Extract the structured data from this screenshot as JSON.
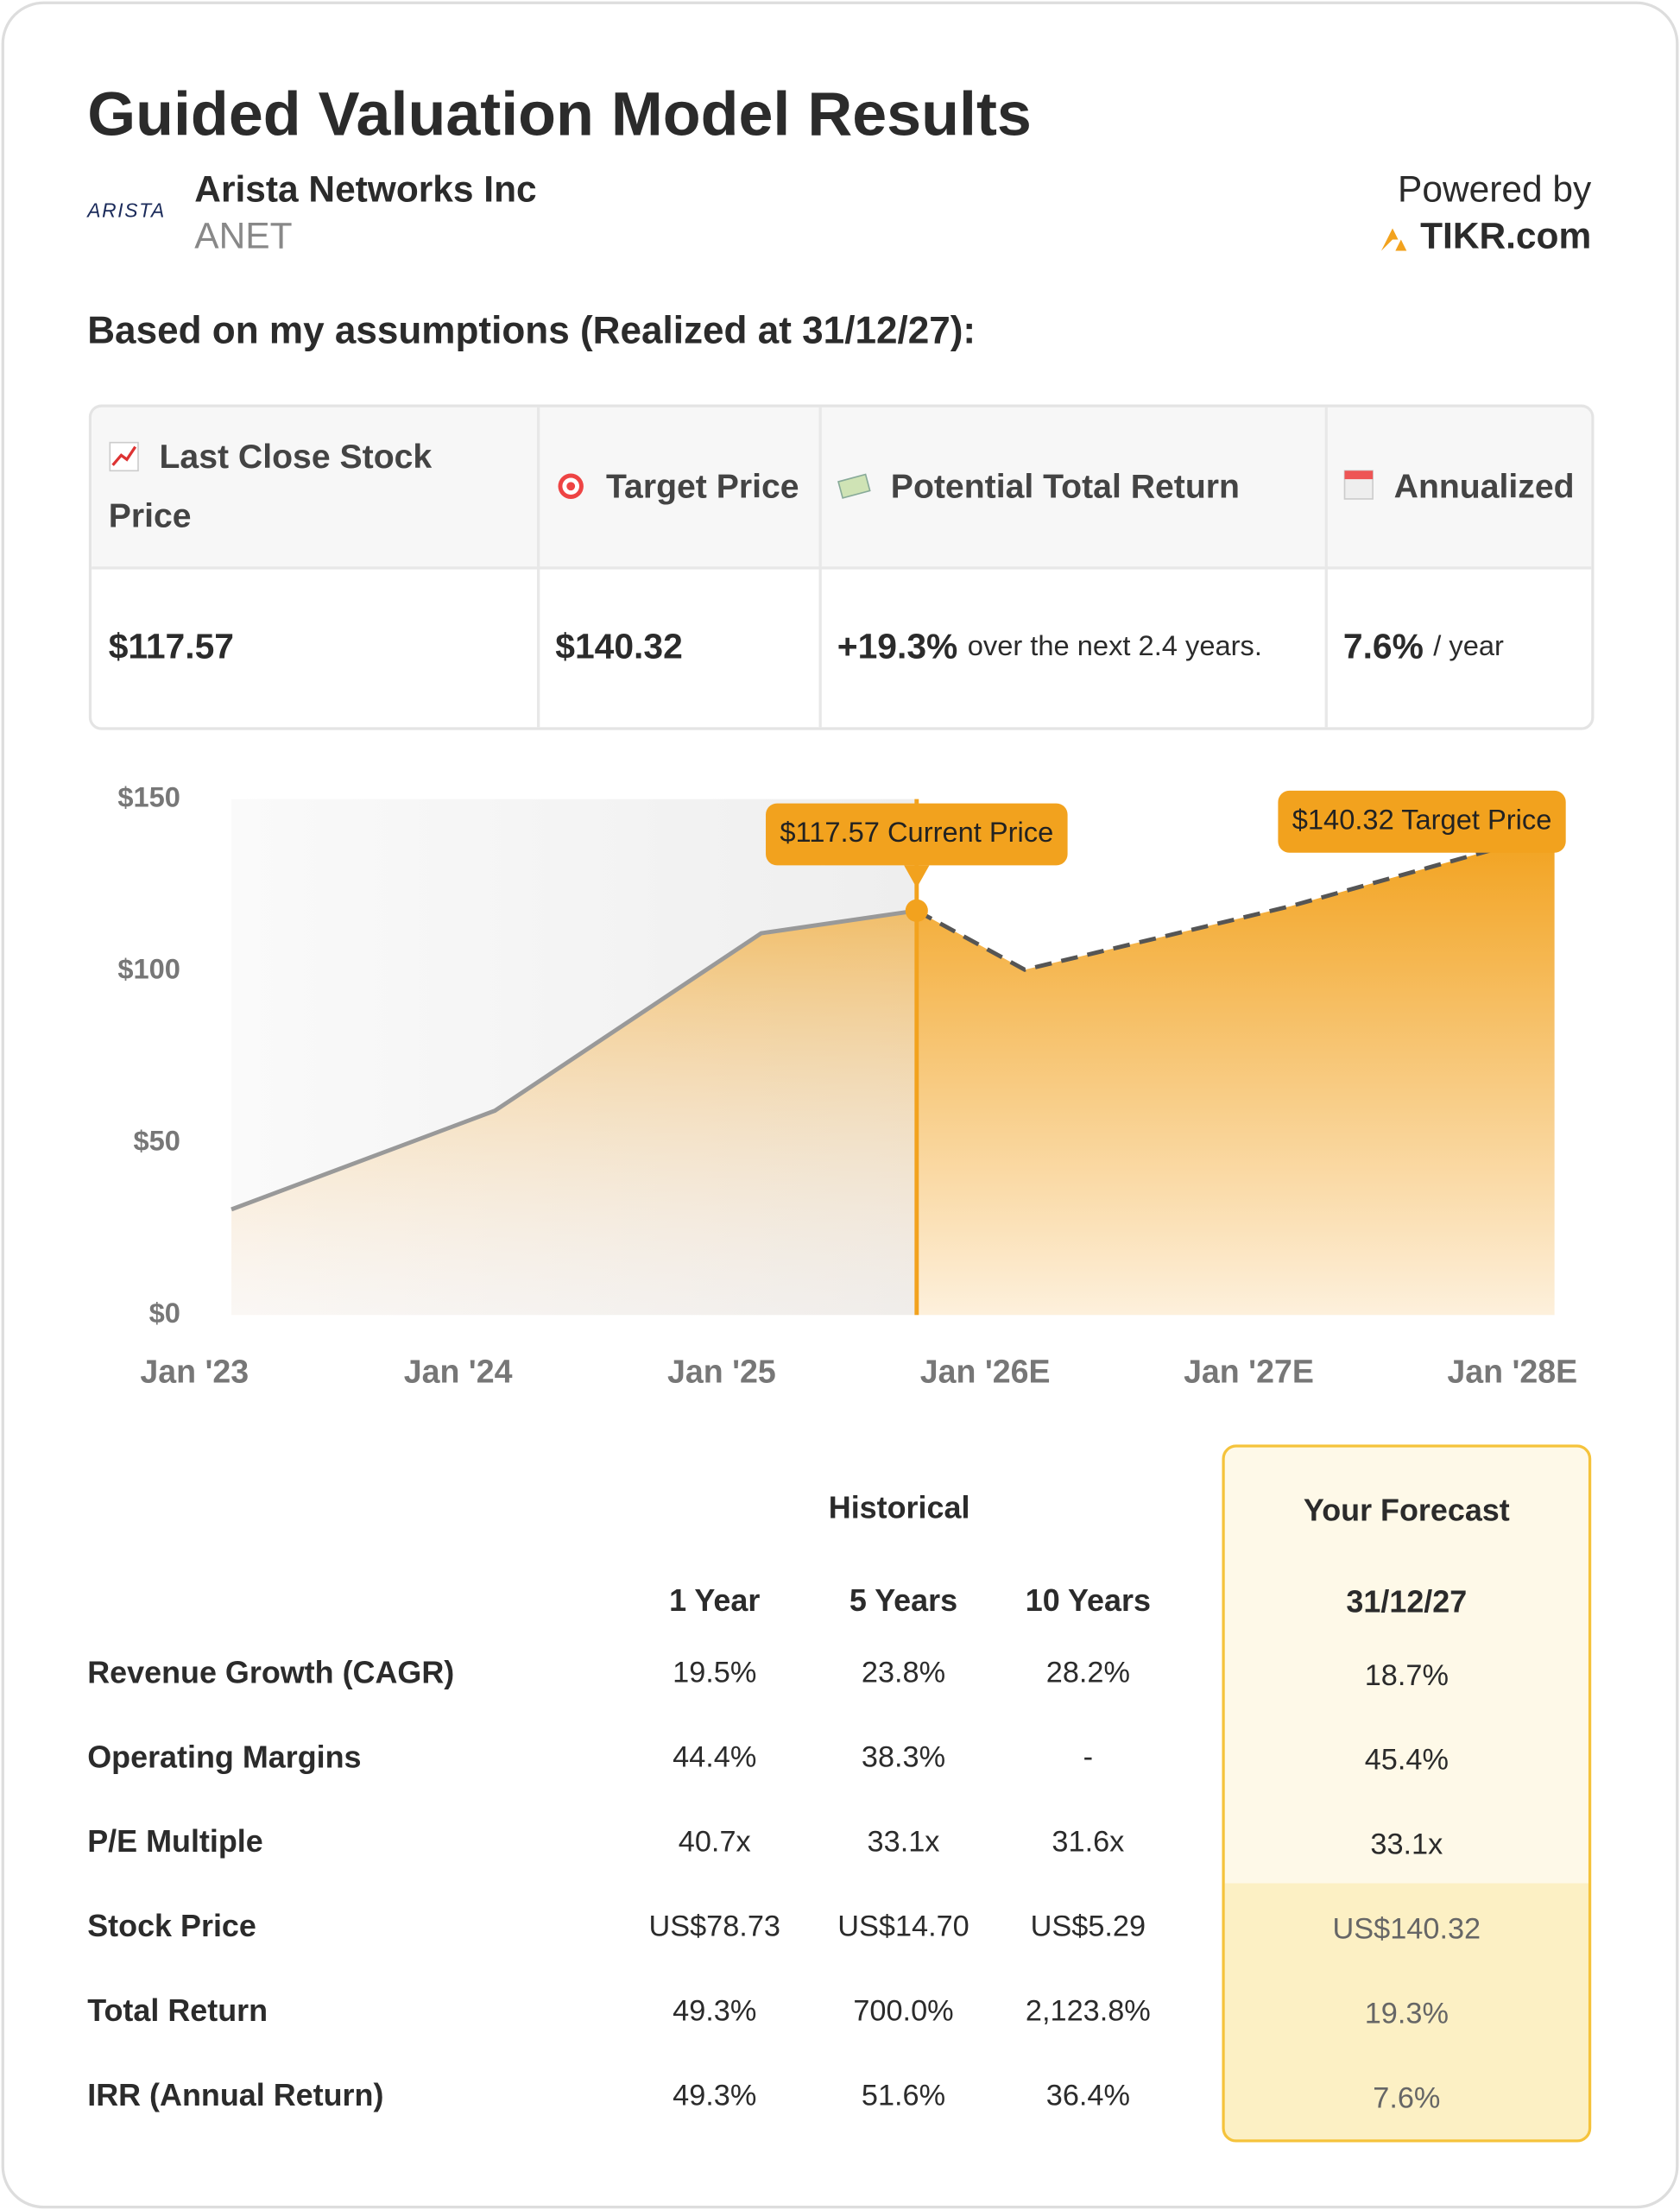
{
  "header": {
    "title": "Guided Valuation Model Results",
    "logo": "ARISTA",
    "company": "Arista Networks Inc",
    "ticker": "ANET",
    "powered_by": "Powered by",
    "brand": "TIKR.com"
  },
  "subtitle": "Based on my assumptions (Realized at 31/12/27):",
  "summary": {
    "headers": [
      "Last Close Stock Price",
      "Target Price",
      "Potential Total Return",
      "Annualized"
    ],
    "values": [
      {
        "value": "$117.57"
      },
      {
        "value": "$140.32"
      },
      {
        "value": "+19.3%",
        "note": "over the next 2.4 years."
      },
      {
        "value": "7.6%",
        "note": "/ year"
      }
    ]
  },
  "chart_data": {
    "type": "area",
    "xlim": [
      2023,
      2028.16
    ],
    "xticks": [
      {
        "value": 2023,
        "label": "Jan '23"
      },
      {
        "value": 2024,
        "label": "Jan '24"
      },
      {
        "value": 2025,
        "label": "Jan '25"
      },
      {
        "value": 2026,
        "label": "Jan '26E"
      },
      {
        "value": 2027,
        "label": "Jan '27E"
      },
      {
        "value": 2028,
        "label": "Jan '28E"
      }
    ],
    "ylim": [
      0,
      150
    ],
    "yticks": [
      {
        "value": 0,
        "label": "$0"
      },
      {
        "value": 50,
        "label": "$50"
      },
      {
        "value": 100,
        "label": "$100"
      },
      {
        "value": 150,
        "label": "$150"
      }
    ],
    "series": [
      {
        "name": "Historical",
        "color": "#999999",
        "x": [
          2023.14,
          2024.14,
          2025.15,
          2025.74
        ],
        "values": [
          30.7,
          59.4,
          111,
          117.57
        ]
      },
      {
        "name": "Forecast",
        "color": "#555555",
        "x": [
          2025.74,
          2026.15,
          2027.16,
          2028.16
        ],
        "values": [
          117.57,
          100.4,
          118.9,
          140.32
        ]
      }
    ],
    "fill_color": "#f2a21e",
    "annotations": [
      "$117.57 Current Price",
      "$140.32 Target Price"
    ]
  },
  "metrics": {
    "historical": "Historical",
    "columns": [
      "1 Year",
      "5 Years",
      "10 Years"
    ],
    "forecast_title": "Your Forecast",
    "forecast_date": "31/12/27",
    "rows": [
      {
        "label": "Revenue Growth (CAGR)",
        "historical": [
          "19.5%",
          "23.8%",
          "28.2%"
        ],
        "forecast": "18.7%"
      },
      {
        "label": "Operating Margins",
        "historical": [
          "44.4%",
          "38.3%",
          "-"
        ],
        "forecast": "45.4%"
      },
      {
        "label": "P/E Multiple",
        "historical": [
          "40.7x",
          "33.1x",
          "31.6x"
        ],
        "forecast": "33.1x"
      },
      {
        "label": "Stock Price",
        "historical": [
          "US$78.73",
          "US$14.70",
          "US$5.29"
        ],
        "forecast": "US$140.32"
      },
      {
        "label": "Total Return",
        "historical": [
          "49.3%",
          "700.0%",
          "2,123.8%"
        ],
        "forecast": "19.3%"
      },
      {
        "label": "IRR (Annual Return)",
        "historical": [
          "49.3%",
          "51.6%",
          "36.4%"
        ],
        "forecast": "7.6%"
      }
    ]
  }
}
